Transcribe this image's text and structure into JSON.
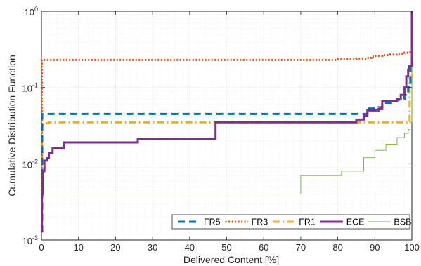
{
  "chart_data": {
    "type": "line",
    "title": "",
    "xlabel": "Delivered Content [%]",
    "ylabel": "Cumulative Distribution Function",
    "xlim": [
      0,
      100
    ],
    "ylim": [
      0.001,
      1
    ],
    "yscale": "log",
    "grid": true,
    "legend_placement": "bottom-right",
    "x_ticks": [
      0,
      10,
      20,
      30,
      40,
      50,
      60,
      70,
      80,
      90,
      100
    ],
    "x_tick_labels": [
      "0",
      "10",
      "20",
      "30",
      "40",
      "50",
      "60",
      "70",
      "80",
      "90",
      "100"
    ],
    "y_ticks": [
      {
        "value": 0.001,
        "base": "10",
        "exp": "-3"
      },
      {
        "value": 0.01,
        "base": "10",
        "exp": "-2"
      },
      {
        "value": 0.1,
        "base": "10",
        "exp": "-1"
      },
      {
        "value": 1,
        "base": "10",
        "exp": "0"
      }
    ],
    "series": [
      {
        "name": "FR5",
        "color": "#0072BD",
        "style": "dashed",
        "x": [
          0,
          0.2,
          86,
          88,
          88.5,
          90,
          91,
          92,
          95,
          96,
          97,
          98,
          99,
          99.3,
          99.6,
          100
        ],
        "y": [
          0.0013,
          0.045,
          0.045,
          0.049,
          0.053,
          0.053,
          0.055,
          0.063,
          0.066,
          0.069,
          0.07,
          0.08,
          0.1,
          0.11,
          0.2,
          1
        ]
      },
      {
        "name": "FR3",
        "color": "#D95319",
        "style": "dotted",
        "x": [
          0,
          0.1,
          72,
          80,
          85,
          88,
          89,
          90,
          92,
          94,
          96,
          98,
          99,
          99.6,
          100
        ],
        "y": [
          0.0013,
          0.23,
          0.23,
          0.235,
          0.24,
          0.245,
          0.255,
          0.26,
          0.265,
          0.27,
          0.275,
          0.285,
          0.29,
          0.3,
          1
        ]
      },
      {
        "name": "FR1",
        "color": "#EDB120",
        "style": "dashdot",
        "x": [
          0,
          0.1,
          0.5,
          1,
          2,
          50,
          99,
          99.4,
          100
        ],
        "y": [
          0.0013,
          0.032,
          0.033,
          0.034,
          0.035,
          0.035,
          0.036,
          0.13,
          1
        ]
      },
      {
        "name": "ECE",
        "color": "#7E2F8E",
        "style": "solid",
        "x": [
          0,
          0.1,
          0.3,
          0.8,
          1.5,
          2,
          3,
          6,
          26,
          47,
          85,
          87,
          88,
          91,
          92,
          95,
          96,
          97,
          98,
          98.5,
          99,
          99.3,
          100
        ],
        "y": [
          0.0013,
          0.004,
          0.008,
          0.011,
          0.012,
          0.014,
          0.016,
          0.019,
          0.021,
          0.035,
          0.038,
          0.043,
          0.05,
          0.052,
          0.066,
          0.067,
          0.07,
          0.08,
          0.1,
          0.14,
          0.17,
          0.19,
          1
        ]
      },
      {
        "name": "BSB",
        "color": "#77AC30",
        "style": "thin",
        "x": [
          0,
          70,
          81,
          87,
          90,
          93,
          96,
          98,
          99,
          99.5,
          100
        ],
        "y": [
          0.004,
          0.007,
          0.008,
          0.012,
          0.015,
          0.018,
          0.022,
          0.025,
          0.028,
          0.035,
          1
        ]
      }
    ]
  }
}
